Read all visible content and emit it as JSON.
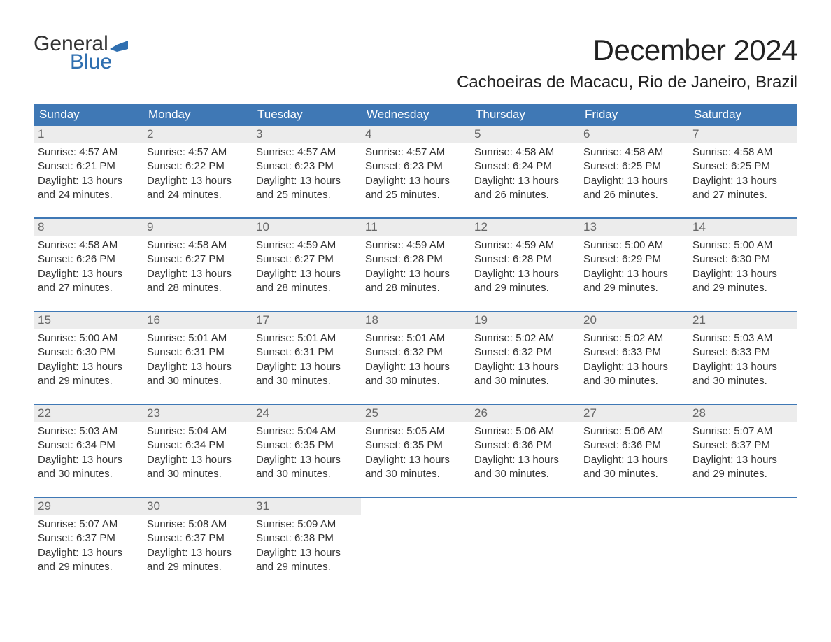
{
  "brand": {
    "word1": "General",
    "word2": "Blue"
  },
  "title": "December 2024",
  "location": "Cachoeiras de Macacu, Rio de Janeiro, Brazil",
  "colors": {
    "header_bg": "#3f78b5",
    "header_text": "#ffffff",
    "daynum_bg": "#ececec",
    "daynum_text": "#666666",
    "body_text": "#333333",
    "rule": "#3f78b5",
    "brand_accent": "#2f6fb0",
    "page_bg": "#ffffff"
  },
  "typography": {
    "title_fontsize": 42,
    "location_fontsize": 24,
    "dow_fontsize": 17,
    "daynum_fontsize": 17,
    "cell_fontsize": 15
  },
  "days_of_week": [
    "Sunday",
    "Monday",
    "Tuesday",
    "Wednesday",
    "Thursday",
    "Friday",
    "Saturday"
  ],
  "weeks": [
    [
      {
        "n": "1",
        "sr": "Sunrise: 4:57 AM",
        "ss": "Sunset: 6:21 PM",
        "d1": "Daylight: 13 hours",
        "d2": "and 24 minutes."
      },
      {
        "n": "2",
        "sr": "Sunrise: 4:57 AM",
        "ss": "Sunset: 6:22 PM",
        "d1": "Daylight: 13 hours",
        "d2": "and 24 minutes."
      },
      {
        "n": "3",
        "sr": "Sunrise: 4:57 AM",
        "ss": "Sunset: 6:23 PM",
        "d1": "Daylight: 13 hours",
        "d2": "and 25 minutes."
      },
      {
        "n": "4",
        "sr": "Sunrise: 4:57 AM",
        "ss": "Sunset: 6:23 PM",
        "d1": "Daylight: 13 hours",
        "d2": "and 25 minutes."
      },
      {
        "n": "5",
        "sr": "Sunrise: 4:58 AM",
        "ss": "Sunset: 6:24 PM",
        "d1": "Daylight: 13 hours",
        "d2": "and 26 minutes."
      },
      {
        "n": "6",
        "sr": "Sunrise: 4:58 AM",
        "ss": "Sunset: 6:25 PM",
        "d1": "Daylight: 13 hours",
        "d2": "and 26 minutes."
      },
      {
        "n": "7",
        "sr": "Sunrise: 4:58 AM",
        "ss": "Sunset: 6:25 PM",
        "d1": "Daylight: 13 hours",
        "d2": "and 27 minutes."
      }
    ],
    [
      {
        "n": "8",
        "sr": "Sunrise: 4:58 AM",
        "ss": "Sunset: 6:26 PM",
        "d1": "Daylight: 13 hours",
        "d2": "and 27 minutes."
      },
      {
        "n": "9",
        "sr": "Sunrise: 4:58 AM",
        "ss": "Sunset: 6:27 PM",
        "d1": "Daylight: 13 hours",
        "d2": "and 28 minutes."
      },
      {
        "n": "10",
        "sr": "Sunrise: 4:59 AM",
        "ss": "Sunset: 6:27 PM",
        "d1": "Daylight: 13 hours",
        "d2": "and 28 minutes."
      },
      {
        "n": "11",
        "sr": "Sunrise: 4:59 AM",
        "ss": "Sunset: 6:28 PM",
        "d1": "Daylight: 13 hours",
        "d2": "and 28 minutes."
      },
      {
        "n": "12",
        "sr": "Sunrise: 4:59 AM",
        "ss": "Sunset: 6:28 PM",
        "d1": "Daylight: 13 hours",
        "d2": "and 29 minutes."
      },
      {
        "n": "13",
        "sr": "Sunrise: 5:00 AM",
        "ss": "Sunset: 6:29 PM",
        "d1": "Daylight: 13 hours",
        "d2": "and 29 minutes."
      },
      {
        "n": "14",
        "sr": "Sunrise: 5:00 AM",
        "ss": "Sunset: 6:30 PM",
        "d1": "Daylight: 13 hours",
        "d2": "and 29 minutes."
      }
    ],
    [
      {
        "n": "15",
        "sr": "Sunrise: 5:00 AM",
        "ss": "Sunset: 6:30 PM",
        "d1": "Daylight: 13 hours",
        "d2": "and 29 minutes."
      },
      {
        "n": "16",
        "sr": "Sunrise: 5:01 AM",
        "ss": "Sunset: 6:31 PM",
        "d1": "Daylight: 13 hours",
        "d2": "and 30 minutes."
      },
      {
        "n": "17",
        "sr": "Sunrise: 5:01 AM",
        "ss": "Sunset: 6:31 PM",
        "d1": "Daylight: 13 hours",
        "d2": "and 30 minutes."
      },
      {
        "n": "18",
        "sr": "Sunrise: 5:01 AM",
        "ss": "Sunset: 6:32 PM",
        "d1": "Daylight: 13 hours",
        "d2": "and 30 minutes."
      },
      {
        "n": "19",
        "sr": "Sunrise: 5:02 AM",
        "ss": "Sunset: 6:32 PM",
        "d1": "Daylight: 13 hours",
        "d2": "and 30 minutes."
      },
      {
        "n": "20",
        "sr": "Sunrise: 5:02 AM",
        "ss": "Sunset: 6:33 PM",
        "d1": "Daylight: 13 hours",
        "d2": "and 30 minutes."
      },
      {
        "n": "21",
        "sr": "Sunrise: 5:03 AM",
        "ss": "Sunset: 6:33 PM",
        "d1": "Daylight: 13 hours",
        "d2": "and 30 minutes."
      }
    ],
    [
      {
        "n": "22",
        "sr": "Sunrise: 5:03 AM",
        "ss": "Sunset: 6:34 PM",
        "d1": "Daylight: 13 hours",
        "d2": "and 30 minutes."
      },
      {
        "n": "23",
        "sr": "Sunrise: 5:04 AM",
        "ss": "Sunset: 6:34 PM",
        "d1": "Daylight: 13 hours",
        "d2": "and 30 minutes."
      },
      {
        "n": "24",
        "sr": "Sunrise: 5:04 AM",
        "ss": "Sunset: 6:35 PM",
        "d1": "Daylight: 13 hours",
        "d2": "and 30 minutes."
      },
      {
        "n": "25",
        "sr": "Sunrise: 5:05 AM",
        "ss": "Sunset: 6:35 PM",
        "d1": "Daylight: 13 hours",
        "d2": "and 30 minutes."
      },
      {
        "n": "26",
        "sr": "Sunrise: 5:06 AM",
        "ss": "Sunset: 6:36 PM",
        "d1": "Daylight: 13 hours",
        "d2": "and 30 minutes."
      },
      {
        "n": "27",
        "sr": "Sunrise: 5:06 AM",
        "ss": "Sunset: 6:36 PM",
        "d1": "Daylight: 13 hours",
        "d2": "and 30 minutes."
      },
      {
        "n": "28",
        "sr": "Sunrise: 5:07 AM",
        "ss": "Sunset: 6:37 PM",
        "d1": "Daylight: 13 hours",
        "d2": "and 29 minutes."
      }
    ],
    [
      {
        "n": "29",
        "sr": "Sunrise: 5:07 AM",
        "ss": "Sunset: 6:37 PM",
        "d1": "Daylight: 13 hours",
        "d2": "and 29 minutes."
      },
      {
        "n": "30",
        "sr": "Sunrise: 5:08 AM",
        "ss": "Sunset: 6:37 PM",
        "d1": "Daylight: 13 hours",
        "d2": "and 29 minutes."
      },
      {
        "n": "31",
        "sr": "Sunrise: 5:09 AM",
        "ss": "Sunset: 6:38 PM",
        "d1": "Daylight: 13 hours",
        "d2": "and 29 minutes."
      },
      null,
      null,
      null,
      null
    ]
  ]
}
